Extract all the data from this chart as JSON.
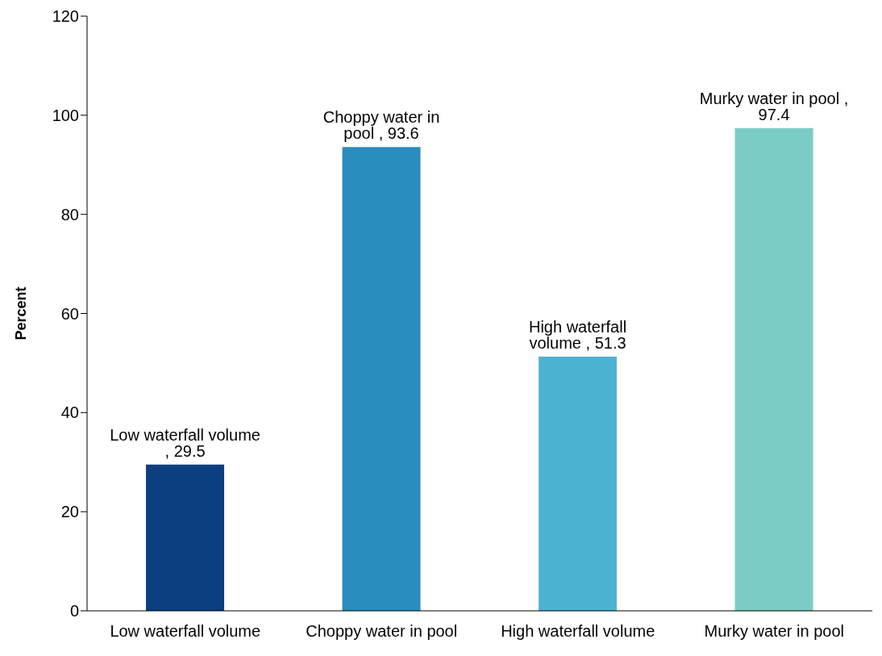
{
  "chart_data": {
    "type": "bar",
    "ylabel": "Percent",
    "categories": [
      "Low waterfall volume",
      "Choppy water in pool",
      "High waterfall volume",
      "Murky water in pool"
    ],
    "values": [
      29.5,
      93.6,
      51.3,
      97.4
    ],
    "colors": [
      "#0b3f7f",
      "#2b8cbe",
      "#4eb3d3",
      "#7bccc4"
    ],
    "value_labels": [
      "Low waterfall volume , 29.5",
      "Choppy water in pool , 93.6",
      "High waterfall volume , 51.3",
      "Murky water in pool , 97.4"
    ],
    "ylim": [
      0,
      120
    ],
    "yticks": [
      0,
      20,
      40,
      60,
      80,
      100,
      120
    ],
    "grid": false,
    "legend": false
  }
}
